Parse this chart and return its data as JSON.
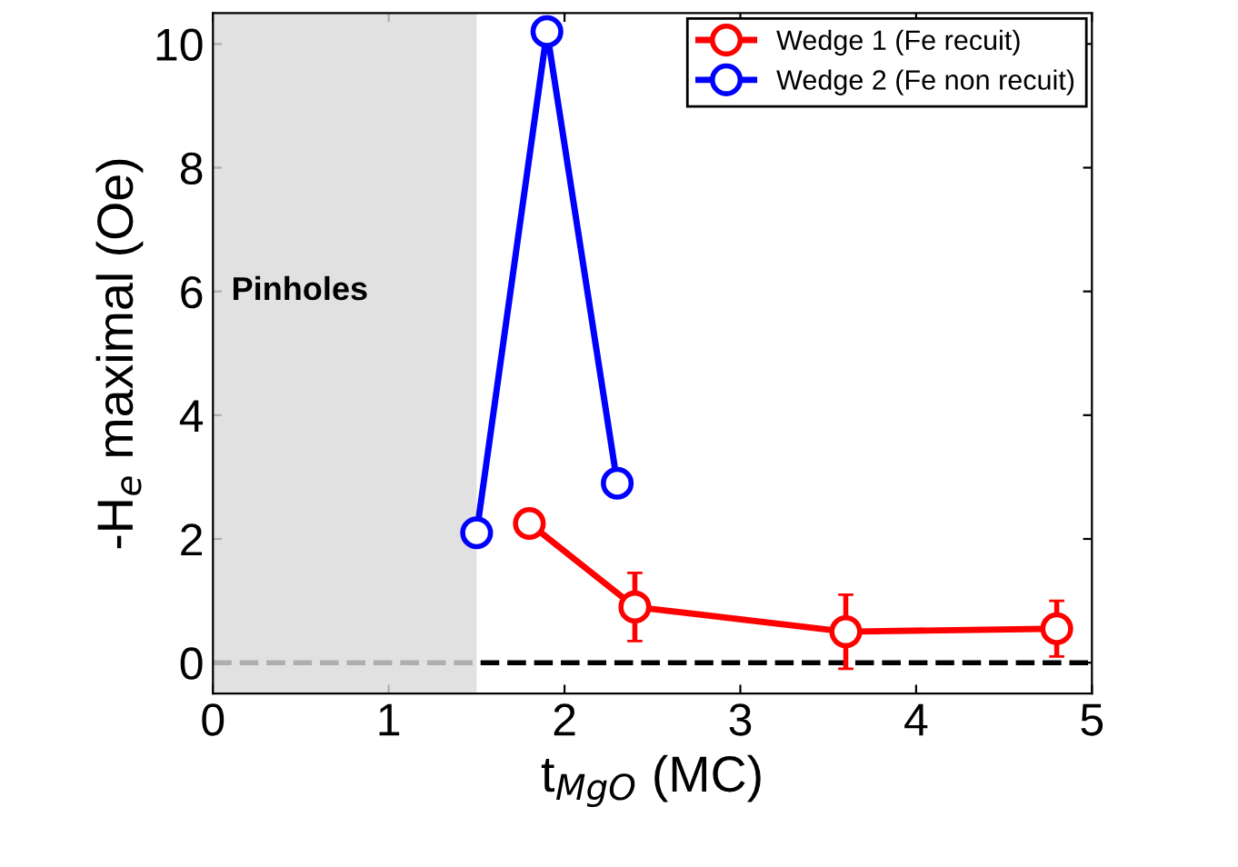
{
  "chart_data": {
    "type": "line",
    "xlabel": "t$_{MgO}$ (MC)",
    "ylabel": "-H$_{e}$ maximal (Oe)",
    "xlim": [
      0,
      5
    ],
    "ylim": [
      -0.5,
      10.5
    ],
    "xticks": [
      0,
      1,
      2,
      3,
      4,
      5
    ],
    "yticks": [
      0,
      2,
      4,
      6,
      8,
      10
    ],
    "series": [
      {
        "name": "Wedge 1 (Fe recuit)",
        "color": "#ff0000",
        "x": [
          1.8,
          2.4,
          3.6,
          4.8
        ],
        "values": [
          2.25,
          0.9,
          0.5,
          0.55
        ],
        "errors": [
          null,
          0.55,
          0.6,
          0.45
        ]
      },
      {
        "name": "Wedge 2 (Fe non recuit)",
        "color": "#0000ff",
        "x": [
          1.5,
          1.9,
          2.3
        ],
        "values": [
          2.1,
          10.2,
          2.9
        ]
      }
    ],
    "bands": [
      {
        "axis": "x",
        "from": 0,
        "to": 1.5,
        "label": "Pinholes",
        "color": "#d9d9d9"
      }
    ],
    "ref_lines": [
      {
        "axis": "y",
        "value": 0,
        "color": "#000000",
        "line_style": "dashed"
      }
    ],
    "marker": "circle",
    "line_style": "solid",
    "grid": false,
    "legend": "top right"
  }
}
